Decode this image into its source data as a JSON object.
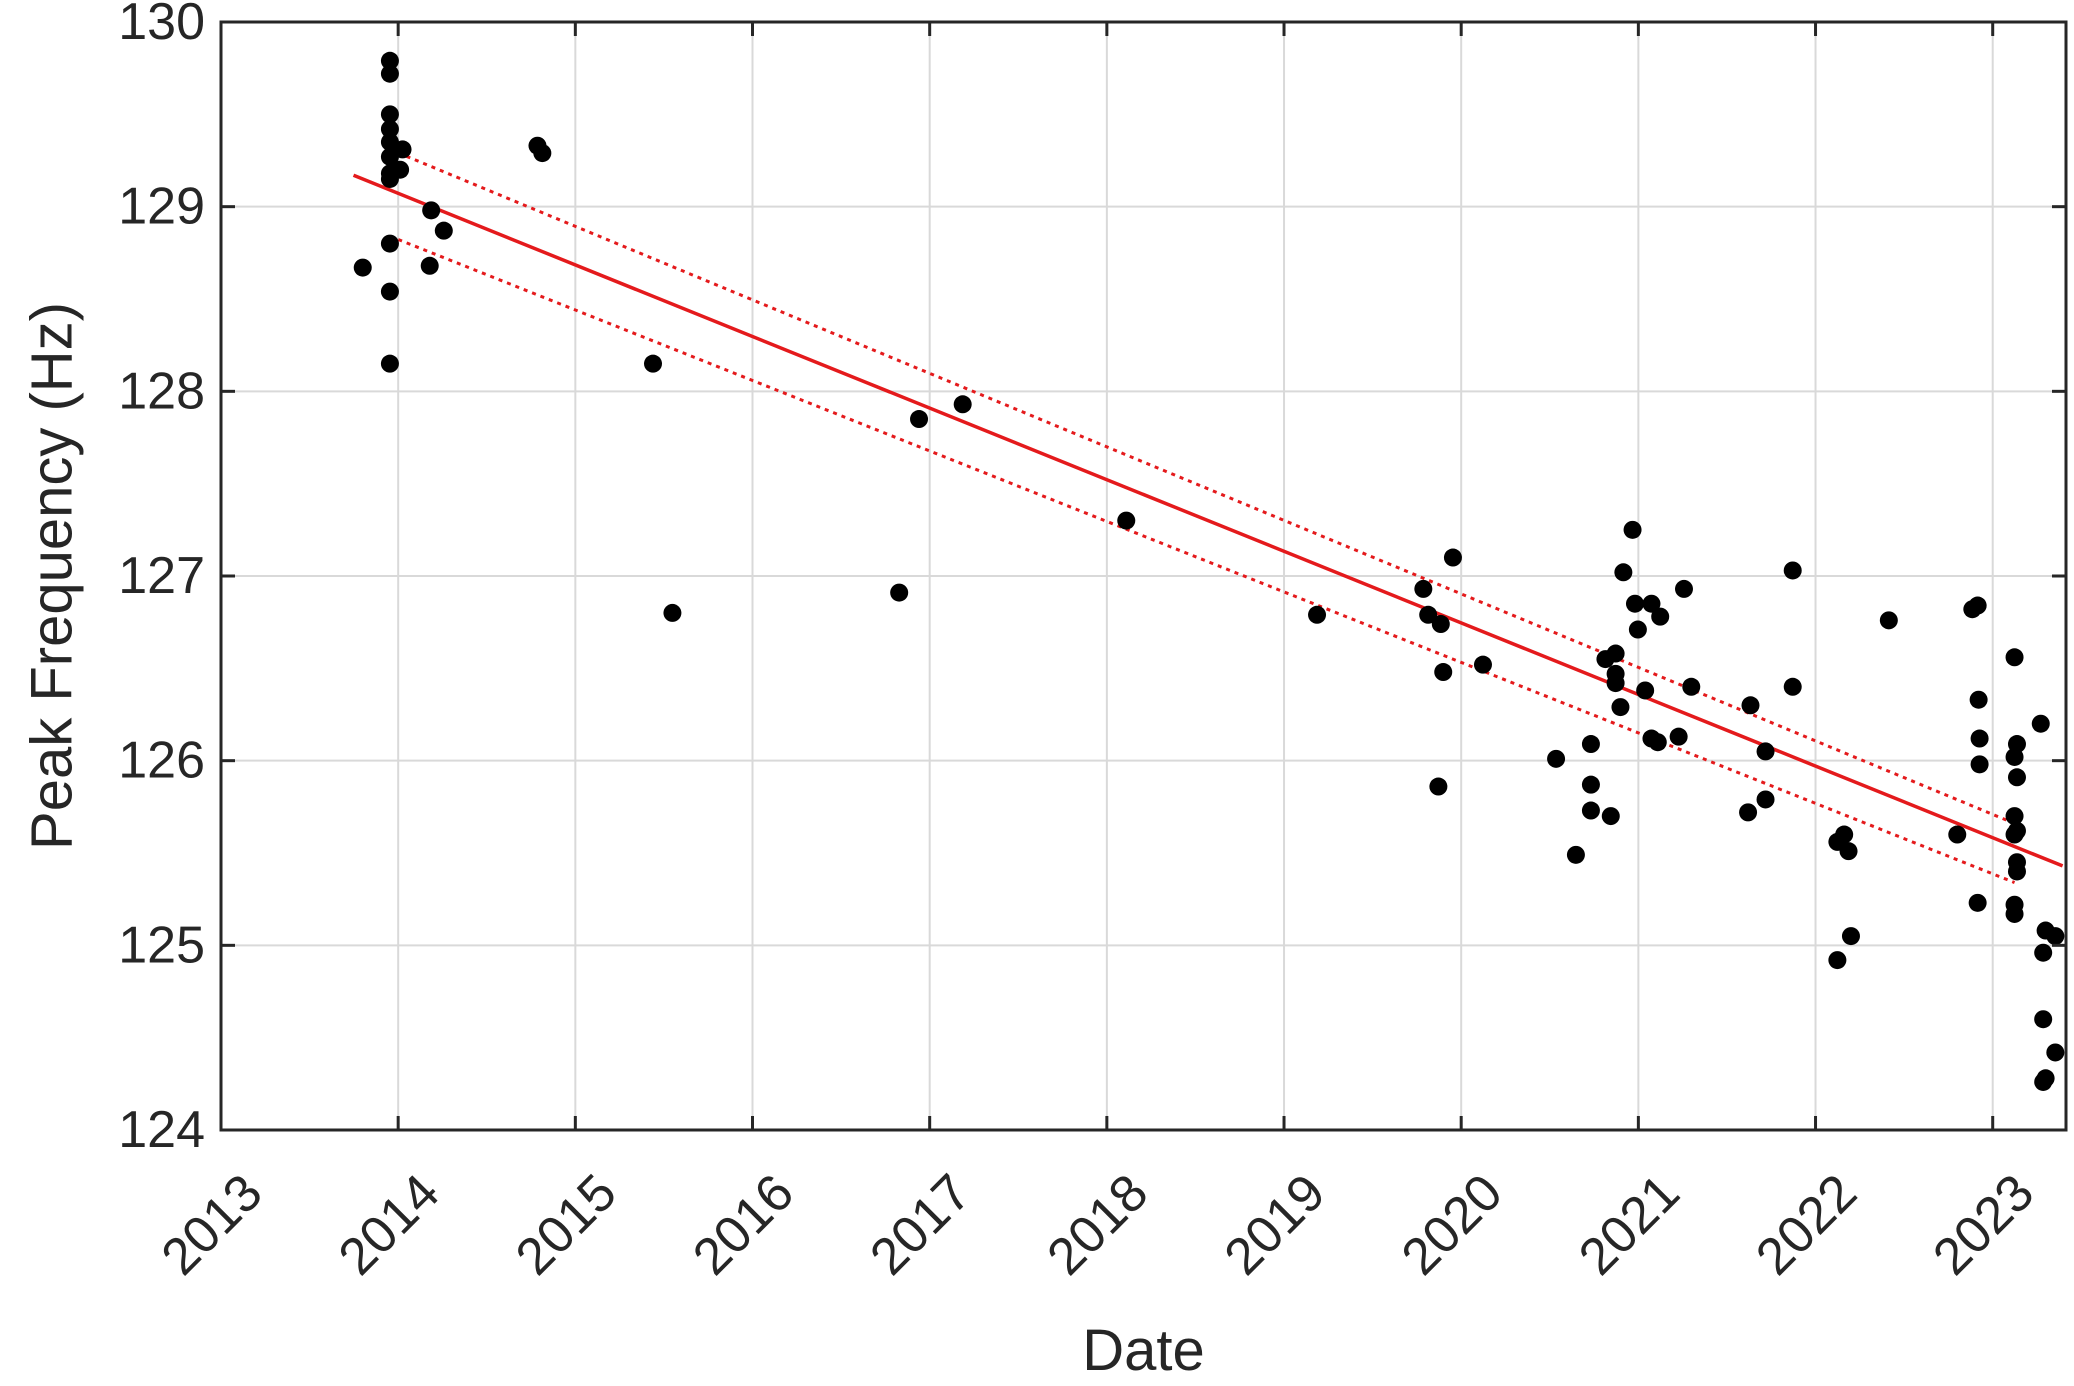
{
  "chart_data": {
    "type": "scatter",
    "title": "",
    "xlabel": "Date",
    "ylabel": "Peak Frequency (Hz)",
    "xlim": [
      "2013-01-01",
      "2023-06-01"
    ],
    "ylim": [
      124,
      130
    ],
    "x_ticks": [
      "2013",
      "2014",
      "2015",
      "2016",
      "2017",
      "2018",
      "2019",
      "2020",
      "2021",
      "2022",
      "2023"
    ],
    "y_ticks": [
      "124",
      "125",
      "126",
      "127",
      "128",
      "129",
      "130"
    ],
    "grid": true,
    "colors": {
      "points": "#000000",
      "fit": "#e41a1c",
      "grid": "#d9d9d9",
      "axes": "#262626"
    },
    "series": [
      {
        "type": "scatter",
        "points": [
          [
            "2013-10-20",
            128.67
          ],
          [
            "2013-12-15",
            129.79
          ],
          [
            "2013-12-15",
            129.72
          ],
          [
            "2013-12-15",
            129.5
          ],
          [
            "2013-12-15",
            129.42
          ],
          [
            "2013-12-15",
            129.35
          ],
          [
            "2013-12-15",
            129.27
          ],
          [
            "2013-12-15",
            129.18
          ],
          [
            "2013-12-15",
            129.15
          ],
          [
            "2013-12-15",
            128.8
          ],
          [
            "2013-12-15",
            128.54
          ],
          [
            "2013-12-15",
            128.15
          ],
          [
            "2014-01-05",
            129.2
          ],
          [
            "2014-01-10",
            129.31
          ],
          [
            "2014-03-10",
            128.98
          ],
          [
            "2014-03-07",
            128.68
          ],
          [
            "2014-04-05",
            128.87
          ],
          [
            "2014-10-15",
            129.33
          ],
          [
            "2014-10-25",
            129.29
          ],
          [
            "2015-06-10",
            128.15
          ],
          [
            "2015-07-20",
            126.8
          ],
          [
            "2016-10-30",
            126.91
          ],
          [
            "2016-12-10",
            127.85
          ],
          [
            "2017-03-10",
            127.93
          ],
          [
            "2018-02-10",
            127.3
          ],
          [
            "2019-03-10",
            126.79
          ],
          [
            "2019-10-15",
            126.93
          ],
          [
            "2019-10-25",
            126.79
          ],
          [
            "2019-11-20",
            126.74
          ],
          [
            "2019-11-25",
            126.48
          ],
          [
            "2019-11-15",
            125.86
          ],
          [
            "2019-12-15",
            127.1
          ],
          [
            "2020-02-15",
            126.52
          ],
          [
            "2020-07-15",
            126.01
          ],
          [
            "2020-08-25",
            125.49
          ],
          [
            "2020-09-25",
            126.09
          ],
          [
            "2020-09-25",
            125.87
          ],
          [
            "2020-09-25",
            125.73
          ],
          [
            "2020-10-25",
            126.55
          ],
          [
            "2020-11-05",
            125.7
          ],
          [
            "2020-11-15",
            126.58
          ],
          [
            "2020-11-15",
            126.47
          ],
          [
            "2020-11-15",
            126.42
          ],
          [
            "2020-11-25",
            126.29
          ],
          [
            "2020-12-01",
            127.02
          ],
          [
            "2020-12-20",
            127.25
          ],
          [
            "2020-12-25",
            126.85
          ],
          [
            "2020-12-31",
            126.71
          ],
          [
            "2021-01-15",
            126.38
          ],
          [
            "2021-01-28",
            126.85
          ],
          [
            "2021-01-28",
            126.12
          ],
          [
            "2021-02-15",
            126.78
          ],
          [
            "2021-02-10",
            126.1
          ],
          [
            "2021-03-25",
            126.13
          ],
          [
            "2021-04-05",
            126.93
          ],
          [
            "2021-04-20",
            126.4
          ],
          [
            "2021-08-15",
            125.72
          ],
          [
            "2021-08-20",
            126.3
          ],
          [
            "2021-09-20",
            126.05
          ],
          [
            "2021-09-20",
            125.79
          ],
          [
            "2021-11-15",
            126.4
          ],
          [
            "2021-11-15",
            127.03
          ],
          [
            "2022-02-15",
            125.56
          ],
          [
            "2022-02-15",
            124.92
          ],
          [
            "2022-03-01",
            125.6
          ],
          [
            "2022-03-10",
            125.51
          ],
          [
            "2022-03-15",
            125.05
          ],
          [
            "2022-06-01",
            126.76
          ],
          [
            "2022-10-20",
            125.6
          ],
          [
            "2022-11-20",
            126.82
          ],
          [
            "2022-12-01",
            126.84
          ],
          [
            "2022-12-01",
            125.23
          ],
          [
            "2022-12-03",
            126.33
          ],
          [
            "2022-12-05",
            126.12
          ],
          [
            "2022-12-05",
            125.98
          ],
          [
            "2023-02-15",
            126.56
          ],
          [
            "2023-02-15",
            126.02
          ],
          [
            "2023-02-15",
            125.7
          ],
          [
            "2023-02-15",
            125.6
          ],
          [
            "2023-02-15",
            125.22
          ],
          [
            "2023-02-15",
            125.17
          ],
          [
            "2023-02-20",
            126.09
          ],
          [
            "2023-02-20",
            125.91
          ],
          [
            "2023-02-20",
            125.62
          ],
          [
            "2023-02-20",
            125.45
          ],
          [
            "2023-02-20",
            125.4
          ],
          [
            "2023-04-10",
            126.2
          ],
          [
            "2023-04-15",
            124.96
          ],
          [
            "2023-04-15",
            124.6
          ],
          [
            "2023-04-15",
            124.26
          ],
          [
            "2023-04-20",
            125.08
          ],
          [
            "2023-04-20",
            124.28
          ],
          [
            "2023-05-10",
            125.05
          ],
          [
            "2023-05-10",
            124.42
          ]
        ]
      },
      {
        "type": "line",
        "style": "solid",
        "points": [
          [
            "2013-10-01",
            129.17
          ],
          [
            "2023-05-25",
            125.43
          ]
        ]
      },
      {
        "type": "line",
        "style": "dotted",
        "points": [
          [
            "2013-12-15",
            129.31
          ],
          [
            "2023-02-15",
            125.66
          ]
        ]
      },
      {
        "type": "line",
        "style": "dotted",
        "points": [
          [
            "2013-12-15",
            128.84
          ],
          [
            "2023-02-15",
            125.34
          ]
        ]
      }
    ]
  }
}
